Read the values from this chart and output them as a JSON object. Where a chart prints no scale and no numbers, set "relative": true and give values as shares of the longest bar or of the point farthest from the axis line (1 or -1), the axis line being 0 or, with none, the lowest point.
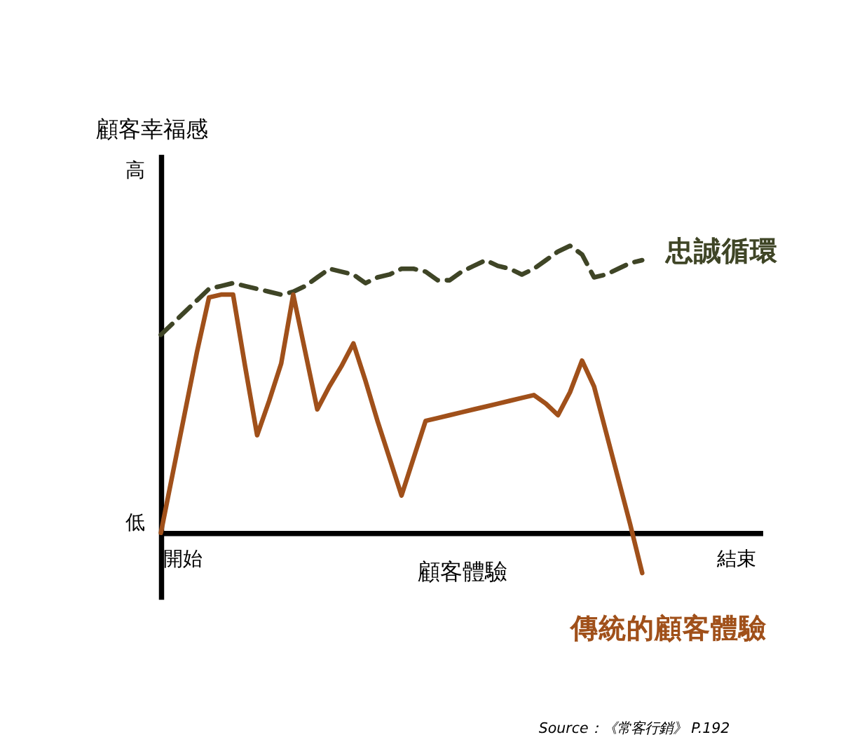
{
  "chart_data": {
    "type": "line",
    "relative": true,
    "xlabel": "顧客體驗",
    "ylabel": "顧客幸福感",
    "categories": [
      null,
      null,
      null,
      null,
      null,
      null,
      null,
      null,
      null,
      null,
      null,
      null,
      null,
      null,
      null,
      null,
      null,
      null,
      null,
      null,
      null,
      null,
      null,
      null,
      null,
      null,
      null,
      null,
      null,
      null,
      null,
      null,
      null,
      null,
      null,
      null,
      null,
      null,
      null,
      null,
      null
    ],
    "series": [
      {
        "name": "忠誠循環",
        "color": "#3f4526",
        "line_style": "dashed",
        "values": [
          0.69,
          0.73,
          0.77,
          0.81,
          0.85,
          0.86,
          0.87,
          0.86,
          0.85,
          0.84,
          0.83,
          0.84,
          0.86,
          0.89,
          0.92,
          0.91,
          0.9,
          0.87,
          0.89,
          0.9,
          0.92,
          0.92,
          0.91,
          0.88,
          0.88,
          0.91,
          0.93,
          0.95,
          0.93,
          0.92,
          0.9,
          0.92,
          0.95,
          0.98,
          1,
          0.97,
          0.89,
          0.9,
          0.92,
          0.94,
          0.95
        ]
      },
      {
        "name": "傳統的顧客體驗",
        "color": "#a0501a",
        "line_style": "solid",
        "values": [
          0,
          0.21,
          0.42,
          0.63,
          0.82,
          0.83,
          0.83,
          0.58,
          0.34,
          0.46,
          0.59,
          0.83,
          0.63,
          0.43,
          0.51,
          0.58,
          0.66,
          0.53,
          0.39,
          0.26,
          0.13,
          0.26,
          0.39,
          0.4,
          0.41,
          0.42,
          0.43,
          0.44,
          0.45,
          0.46,
          0.47,
          0.48,
          0.45,
          0.41,
          0.49,
          0.6,
          0.51,
          0.35,
          0.19,
          0.03,
          -0.14
        ]
      }
    ],
    "annotations": [
      "高",
      "低",
      "開始",
      "結束",
      "Source：《常客行銷》 P.192"
    ]
  }
}
